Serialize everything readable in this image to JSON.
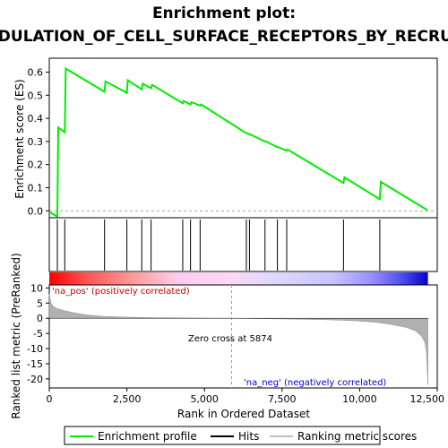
{
  "chart_data": {
    "type": "line",
    "title": "Enrichment plot:",
    "title_line2": "REACTOME_NEF_MEDIATES_DOWN_MODULATION_OF_CELL_SURFACE_RECEPTORS_BY_RECRUITING_THEM_TO_CLATHRIN_ADAPTERS",
    "xlabel": "Rank in Ordered Dataset",
    "es_panel": {
      "ylabel": "Enrichment score (ES)",
      "xlim": [
        0,
        12500
      ],
      "ylim": [
        -0.03,
        0.66
      ],
      "yticks": [
        "0.0",
        "0.1",
        "0.2",
        "0.3",
        "0.4",
        "0.5",
        "0.6"
      ],
      "series": [
        {
          "name": "Enrichment profile",
          "color": "#00ee00",
          "x": [
            0,
            260,
            290,
            500,
            530,
            1780,
            1810,
            2500,
            2530,
            2980,
            3010,
            3280,
            3310,
            4300,
            4330,
            4550,
            4580,
            4860,
            4890,
            6350,
            6380,
            6450,
            6480,
            6950,
            6980,
            7350,
            7380,
            7650,
            7680,
            9480,
            9510,
            10650,
            10680,
            12180
          ],
          "y": [
            -0.005,
            -0.025,
            0.36,
            0.34,
            0.615,
            0.515,
            0.56,
            0.51,
            0.565,
            0.525,
            0.55,
            0.53,
            0.545,
            0.465,
            0.475,
            0.46,
            0.47,
            0.455,
            0.46,
            0.335,
            0.335,
            0.33,
            0.33,
            0.3,
            0.3,
            0.275,
            0.275,
            0.26,
            0.265,
            0.12,
            0.145,
            0.05,
            0.125,
            0.003
          ]
        }
      ]
    },
    "hits": [
      260,
      500,
      1780,
      2500,
      2980,
      3280,
      4300,
      4550,
      4860,
      6350,
      6450,
      6950,
      7350,
      7650,
      9480,
      10650
    ],
    "metric_panel": {
      "ylabel": "Ranked list metric (PreRanked)",
      "xticks": [
        "0",
        "2,500",
        "5,000",
        "7,500",
        "10,000",
        "12,500"
      ],
      "xtick_values": [
        0,
        2500,
        5000,
        7500,
        10000,
        12500
      ],
      "ylim": [
        -23,
        11
      ],
      "yticks": [
        "10",
        "5",
        "0",
        "-5",
        "-10",
        "-15",
        "-20"
      ],
      "ytick_values": [
        10,
        5,
        0,
        -5,
        -10,
        -15,
        -20
      ],
      "metric_curve": {
        "x": [
          0,
          50,
          120,
          250,
          500,
          800,
          1200,
          1800,
          2500,
          3500,
          4500,
          5874,
          7000,
          8000,
          9000,
          9800,
          10500,
          11000,
          11500,
          11800,
          12000,
          12100,
          12150,
          12200
        ],
        "y": [
          8,
          5.2,
          4,
          3.2,
          2.5,
          1.8,
          1.1,
          0.6,
          0.35,
          0.18,
          0.08,
          0,
          -0.15,
          -0.3,
          -0.5,
          -0.8,
          -1.3,
          -2,
          -3,
          -4.2,
          -6,
          -8,
          -11,
          -22
        ]
      },
      "zero_cross_label": "Zero cross at 5874",
      "zero_cross_value": 5874,
      "pos_label": "'na_pos' (positively correlated)",
      "neg_label": "'na_neg' (negatively correlated)"
    },
    "legend": {
      "placement": "bottom",
      "entries": [
        {
          "label": "Enrichment profile",
          "color": "#00ee00"
        },
        {
          "label": "Hits",
          "color": "#000000"
        },
        {
          "label": "Ranking metric scores",
          "color": "#c0c0c0"
        }
      ]
    },
    "colors": {
      "es_line": "#00ee00",
      "pos_label": "#cc0000",
      "neg_label": "#0000cc",
      "metric_fill": "#b0b0b0",
      "bar_red": "#ff0000",
      "bar_blue": "#0000dd"
    }
  }
}
